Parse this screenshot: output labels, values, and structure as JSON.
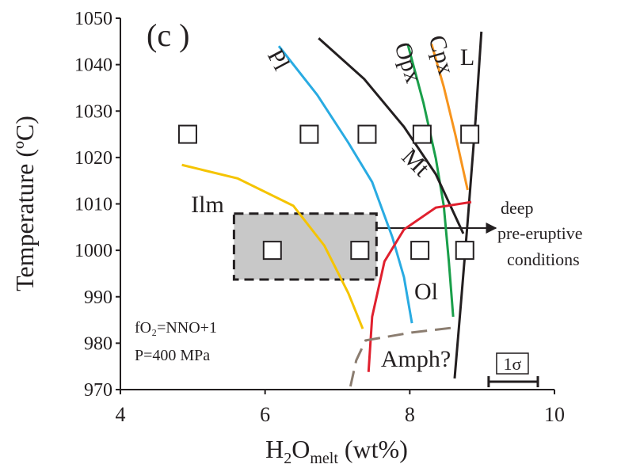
{
  "chart_data": {
    "type": "phase-diagram",
    "title": "(c )",
    "xlabel": [
      "H",
      "2",
      "O",
      "melt",
      " (wt%)"
    ],
    "ylabel": "Temperature (ºC)",
    "xlim": [
      4,
      10
    ],
    "ylim": [
      970,
      1050
    ],
    "xticks": [
      4,
      6,
      8,
      10
    ],
    "yticks": [
      970,
      980,
      990,
      1000,
      1010,
      1020,
      1030,
      1040,
      1050
    ],
    "points": {
      "x": [
        4.93,
        6.61,
        7.41,
        8.17,
        8.83,
        6.1,
        7.31,
        8.14,
        8.76
      ],
      "y": [
        1025,
        1025,
        1025,
        1025,
        1025,
        1000,
        1000,
        1000,
        1000
      ]
    },
    "curves": [
      {
        "name": "Pl",
        "color": "#29abe2",
        "x": [
          6.19,
          6.72,
          7.15,
          7.48,
          7.76,
          7.92,
          8.03
        ],
        "y": [
          1044,
          1033.5,
          1023.2,
          1014.7,
          1002.8,
          994.2,
          984.3
        ]
      },
      {
        "name": "Opx",
        "color": "#1a9f4a",
        "x": [
          7.97,
          8.19,
          8.36,
          8.47,
          8.54,
          8.6
        ],
        "y": [
          1044.5,
          1031.7,
          1019.8,
          1009.6,
          997.6,
          985.7
        ]
      },
      {
        "name": "Cpx",
        "color": "#f7941d",
        "x": [
          8.3,
          8.47,
          8.63,
          8.8
        ],
        "y": [
          1044.5,
          1035.2,
          1024.9,
          1013
        ]
      },
      {
        "name": "L",
        "color": "#231f20",
        "x": [
          8.99,
          8.91,
          8.8,
          8.71,
          8.62
        ],
        "y": [
          1047.1,
          1028.3,
          1006.2,
          989.1,
          972.4
        ]
      },
      {
        "name": "Mt",
        "color": "#231f20",
        "x": [
          6.74,
          7.37,
          7.92,
          8.36,
          8.74
        ],
        "y": [
          1045.7,
          1036.9,
          1026.6,
          1016.4,
          1003.6
        ]
      },
      {
        "name": "Ilm",
        "color": "#f5c400",
        "x": [
          4.85,
          5.62,
          6.39,
          6.82,
          7.15,
          7.35
        ],
        "y": [
          1018.4,
          1015.5,
          1009.6,
          1001,
          990.8,
          983.1
        ]
      },
      {
        "name": "Ol",
        "color": "#e0202e",
        "x": [
          7.43,
          7.48,
          7.65,
          7.92,
          8.36,
          8.85
        ],
        "y": [
          973.8,
          985.7,
          997.6,
          1004.5,
          1009.2,
          1010.4
        ]
      },
      {
        "name": "Amph?",
        "color": "#8b7d70",
        "dashed": true,
        "x": [
          7.18,
          7.26,
          7.39,
          8.03,
          8.58
        ],
        "y": [
          970.7,
          976.3,
          980.6,
          982.3,
          983.3
        ]
      }
    ],
    "region": {
      "x": [
        5.57,
        7.54
      ],
      "y": [
        993.7,
        1007.9
      ]
    },
    "arrow_label": [
      "deep",
      "pre-eruptive",
      "conditions"
    ],
    "annotations": [
      "fO₂=NNO+1",
      "P=400 MPa"
    ],
    "error_bar": {
      "label": "1σ",
      "x": [
        9.09,
        9.77
      ],
      "y": 971.7
    }
  }
}
